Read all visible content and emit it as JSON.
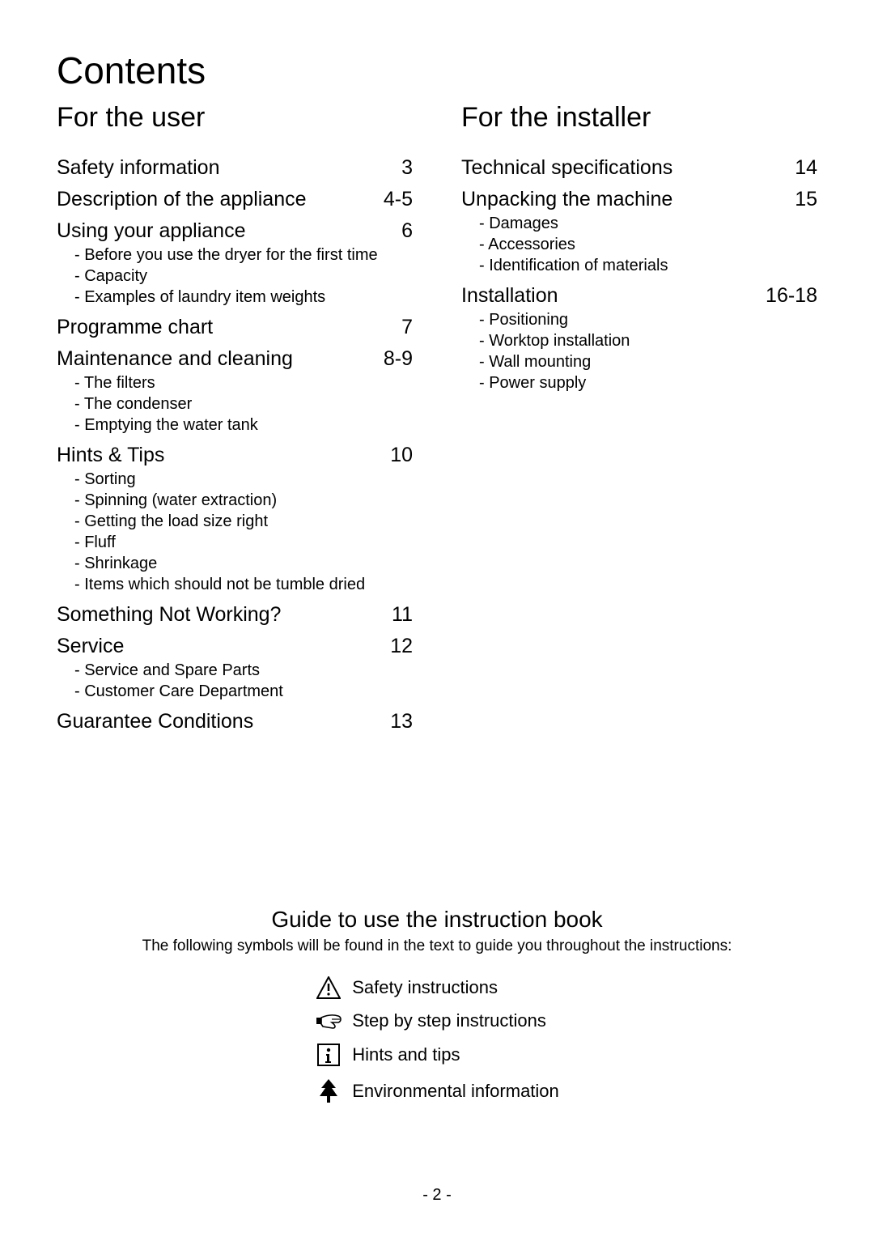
{
  "title": "Contents",
  "user_section": {
    "heading": "For the user",
    "items": [
      {
        "title": "Safety  information",
        "page": "3",
        "subs": []
      },
      {
        "title": "Description of the appliance",
        "page": "4-5",
        "subs": []
      },
      {
        "title": "Using your appliance",
        "page": "6",
        "subs": [
          "- Before you use the dryer for the ﬁrst time",
          "- Capacity",
          "- Examples of laundry item weights"
        ]
      },
      {
        "title": "Programme chart",
        "page": "7",
        "subs": []
      },
      {
        "title": "Maintenance and cleaning",
        "page": "8-9",
        "subs": [
          "- The ﬁlters",
          "- The condenser",
          "- Emptying the water tank"
        ]
      },
      {
        "title": "Hints & Tips",
        "page": "10",
        "subs": [
          "- Sorting",
          "- Spinning (water extraction)",
          "- Getting the load size right",
          "- Fluff",
          "- Shrinkage",
          "- Items which should not be tumble dried"
        ]
      },
      {
        "title": "Something Not Working?",
        "page": "11",
        "subs": []
      },
      {
        "title": "Service",
        "page": "12",
        "subs": [
          "- Service and Spare Parts",
          "- Customer Care Department"
        ]
      },
      {
        "title": "Guarantee Conditions",
        "page": "13",
        "subs": []
      }
    ]
  },
  "installer_section": {
    "heading": "For the installer",
    "items": [
      {
        "title": "Technical speciﬁcations",
        "page": "14",
        "subs": []
      },
      {
        "title": "Unpacking the machine",
        "page": "15",
        "subs": [
          "- Damages",
          "- Accessories",
          "- Identiﬁcation of materials"
        ]
      },
      {
        "title": "Installation",
        "page": "16-18",
        "subs": [
          "- Positioning",
          "- Worktop installation",
          "- Wall mounting",
          "- Power supply"
        ]
      }
    ]
  },
  "guide": {
    "heading": "Guide to use the instruction book",
    "intro": "The following symbols will be found in the text to guide you throughout the instructions:",
    "legend": [
      {
        "icon": "warning",
        "label": "Safety instructions"
      },
      {
        "icon": "hand",
        "label": "Step by step instructions"
      },
      {
        "icon": "info",
        "label": "Hints and tips"
      },
      {
        "icon": "tree",
        "label": "Environmental information"
      }
    ]
  },
  "page_number": "- 2 -",
  "colors": {
    "text": "#000000",
    "bg": "#ffffff"
  }
}
